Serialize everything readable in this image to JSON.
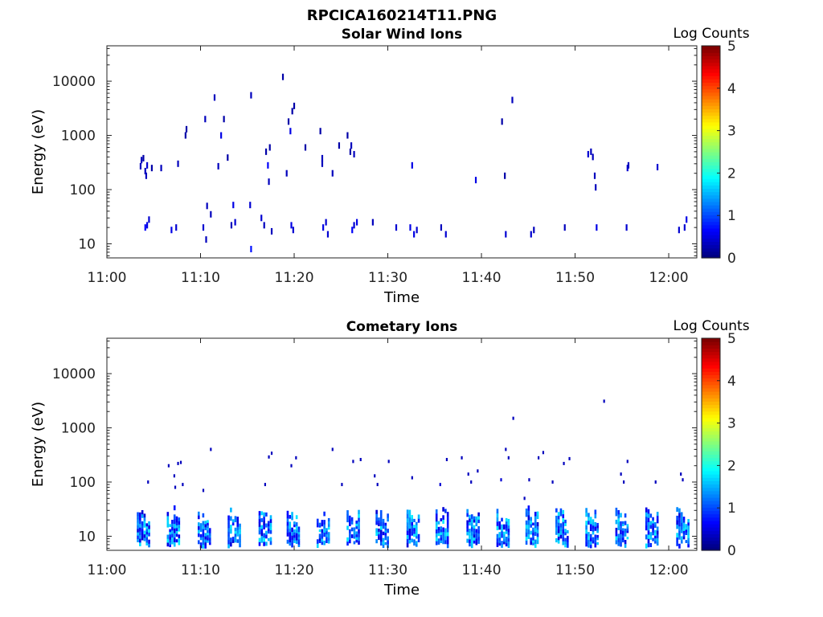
{
  "figure_title": "RPCICA160214T11.PNG",
  "chart_data": [
    {
      "type": "heatmap",
      "title": "Solar Wind Ions",
      "xlabel": "Time",
      "ylabel": "Energy (eV)",
      "yscale": "log",
      "ylim": [
        5.5,
        45000
      ],
      "xlim_minutes_after_11_00": [
        0,
        63
      ],
      "xticks": [
        "11:00",
        "11:10",
        "11:20",
        "11:30",
        "11:40",
        "11:50",
        "12:00"
      ],
      "yticks": [
        "10",
        "100",
        "1000",
        "10000"
      ],
      "colorbar": {
        "label": "Log Counts",
        "range": [
          0,
          5
        ],
        "ticks": [
          "0",
          "1",
          "2",
          "3",
          "4",
          "5"
        ],
        "colormap": "jet"
      },
      "grid": false,
      "cells": [
        [
          3.6,
          270,
          0.3
        ],
        [
          3.7,
          350,
          0.3
        ],
        [
          3.9,
          380,
          0.2
        ],
        [
          4.1,
          220,
          0.3
        ],
        [
          4.2,
          180,
          0.3
        ],
        [
          4.3,
          280,
          0.4
        ],
        [
          4.1,
          20,
          0.6
        ],
        [
          4.3,
          22,
          0.5
        ],
        [
          4.5,
          28,
          0.4
        ],
        [
          4.8,
          250,
          0.2
        ],
        [
          5.8,
          250,
          0.3
        ],
        [
          6.9,
          18,
          0.5
        ],
        [
          7.4,
          20,
          0.4
        ],
        [
          7.6,
          300,
          0.3
        ],
        [
          8.4,
          1000,
          0.2
        ],
        [
          8.5,
          1300,
          0.2
        ],
        [
          10.3,
          20,
          0.4
        ],
        [
          10.6,
          12,
          0.3
        ],
        [
          10.5,
          2000,
          0.3
        ],
        [
          10.7,
          50,
          0.3
        ],
        [
          11.1,
          35,
          0.3
        ],
        [
          11.5,
          5000,
          0.3
        ],
        [
          11.9,
          270,
          0.3
        ],
        [
          12.2,
          1000,
          0.5
        ],
        [
          12.5,
          2000,
          0.2
        ],
        [
          12.9,
          390,
          0.2
        ],
        [
          13.3,
          22,
          0.3
        ],
        [
          13.5,
          52,
          0.5
        ],
        [
          13.7,
          25,
          0.4
        ],
        [
          15.4,
          5500,
          0.3
        ],
        [
          15.3,
          52,
          0.4
        ],
        [
          15.4,
          8,
          0.7
        ],
        [
          16.5,
          30,
          0.4
        ],
        [
          16.8,
          22,
          0.3
        ],
        [
          17,
          500,
          0.2
        ],
        [
          17.2,
          280,
          0.6
        ],
        [
          17.3,
          140,
          0.3
        ],
        [
          17.4,
          600,
          0.2
        ],
        [
          17.6,
          17,
          0.3
        ],
        [
          18.8,
          12000,
          0.2
        ],
        [
          19.2,
          200,
          0.3
        ],
        [
          19.4,
          1800,
          0.2
        ],
        [
          19.6,
          1200,
          0.5
        ],
        [
          19.8,
          2800,
          0.2
        ],
        [
          20,
          3500,
          0.2
        ],
        [
          19.7,
          22,
          0.5
        ],
        [
          19.9,
          18,
          0.4
        ],
        [
          21.2,
          600,
          0.2
        ],
        [
          22.8,
          1200,
          0.2
        ],
        [
          23,
          380,
          0.3
        ],
        [
          23,
          300,
          0.3
        ],
        [
          23.1,
          20,
          0.5
        ],
        [
          23.4,
          25,
          0.4
        ],
        [
          23.6,
          15,
          0.4
        ],
        [
          24.1,
          200,
          0.3
        ],
        [
          24.8,
          650,
          0.2
        ],
        [
          25.7,
          1000,
          0.2
        ],
        [
          26,
          500,
          0.2
        ],
        [
          26.1,
          650,
          0.3
        ],
        [
          26.4,
          450,
          0.3
        ],
        [
          26.2,
          18,
          0.6
        ],
        [
          26.4,
          22,
          0.4
        ],
        [
          26.7,
          25,
          0.5
        ],
        [
          28.4,
          25,
          0.3
        ],
        [
          30.9,
          20,
          0.4
        ],
        [
          32.4,
          20,
          0.5
        ],
        [
          32.6,
          280,
          0.5
        ],
        [
          32.8,
          15,
          0.5
        ],
        [
          33.1,
          18,
          0.4
        ],
        [
          35.7,
          20,
          0.3
        ],
        [
          36.2,
          15,
          0.4
        ],
        [
          39.4,
          150,
          0.5
        ],
        [
          42.2,
          1800,
          0.2
        ],
        [
          42.5,
          180,
          0.2
        ],
        [
          42.6,
          15,
          0.4
        ],
        [
          43.3,
          4500,
          0.3
        ],
        [
          45.3,
          15,
          0.4
        ],
        [
          45.6,
          18,
          0.3
        ],
        [
          48.9,
          20,
          0.3
        ],
        [
          51.4,
          450,
          0.4
        ],
        [
          51.7,
          500,
          0.3
        ],
        [
          51.9,
          400,
          0.3
        ],
        [
          52.1,
          180,
          0.3
        ],
        [
          52.2,
          110,
          0.3
        ],
        [
          52.3,
          20,
          0.5
        ],
        [
          55.6,
          250,
          0.4
        ],
        [
          55.7,
          280,
          0.3
        ],
        [
          55.5,
          20,
          0.4
        ],
        [
          58.8,
          260,
          0.4
        ],
        [
          61.1,
          18,
          0.4
        ],
        [
          61.7,
          20,
          0.4
        ],
        [
          61.9,
          28,
          0.5
        ]
      ]
    },
    {
      "type": "heatmap",
      "title": "Cometary Ions",
      "xlabel": "Time",
      "ylabel": "Energy (eV)",
      "yscale": "log",
      "ylim": [
        5.5,
        45000
      ],
      "xlim_minutes_after_11_00": [
        0,
        63
      ],
      "xticks": [
        "11:00",
        "11:10",
        "11:20",
        "11:30",
        "11:40",
        "11:50",
        "12:00"
      ],
      "yticks": [
        "10",
        "100",
        "1000",
        "10000"
      ],
      "colorbar": {
        "label": "Log Counts",
        "range": [
          0,
          5
        ],
        "ticks": [
          "0",
          "1",
          "2",
          "3",
          "4",
          "5"
        ],
        "colormap": "jet"
      },
      "grid": false,
      "bursts_minutes": [
        3.9,
        7.1,
        10.4,
        13.6,
        16.9,
        19.9,
        23.1,
        26.3,
        29.4,
        32.7,
        35.8,
        39.1,
        42.3,
        45.4,
        48.6,
        51.8,
        55.0,
        58.2,
        61.5
      ],
      "burst_energy_range_ev": [
        6,
        38
      ],
      "burst_peak_log_counts": 1.8,
      "sparse_cells": [
        [
          4.4,
          100,
          0.3
        ],
        [
          6.6,
          200,
          0.3
        ],
        [
          7.2,
          130,
          0.3
        ],
        [
          7.3,
          80,
          0.3
        ],
        [
          7.6,
          220,
          0.3
        ],
        [
          7.9,
          230,
          0.3
        ],
        [
          8.1,
          90,
          0.3
        ],
        [
          10.3,
          70,
          0.3
        ],
        [
          11.1,
          400,
          0.3
        ],
        [
          16.9,
          90,
          0.3
        ],
        [
          17.3,
          290,
          0.3
        ],
        [
          17.6,
          340,
          0.3
        ],
        [
          19.7,
          200,
          0.3
        ],
        [
          20.2,
          280,
          0.3
        ],
        [
          24.1,
          400,
          0.3
        ],
        [
          25.1,
          90,
          0.3
        ],
        [
          26.3,
          240,
          0.3
        ],
        [
          27.1,
          260,
          0.3
        ],
        [
          28.6,
          130,
          0.3
        ],
        [
          28.9,
          90,
          0.3
        ],
        [
          30.1,
          240,
          0.3
        ],
        [
          32.6,
          120,
          0.3
        ],
        [
          35.6,
          90,
          0.4
        ],
        [
          36.3,
          260,
          0.3
        ],
        [
          37.9,
          280,
          0.3
        ],
        [
          38.6,
          140,
          0.3
        ],
        [
          38.9,
          100,
          0.3
        ],
        [
          39.6,
          160,
          0.3
        ],
        [
          42.1,
          110,
          0.4
        ],
        [
          42.6,
          400,
          0.3
        ],
        [
          42.9,
          280,
          0.3
        ],
        [
          43.4,
          1500,
          0.3
        ],
        [
          44.6,
          50,
          0.3
        ],
        [
          45.1,
          110,
          0.3
        ],
        [
          46.1,
          280,
          0.3
        ],
        [
          46.6,
          350,
          0.3
        ],
        [
          47.6,
          100,
          0.3
        ],
        [
          48.8,
          220,
          0.3
        ],
        [
          49.4,
          270,
          0.3
        ],
        [
          53.1,
          3100,
          0.3
        ],
        [
          54.9,
          140,
          0.3
        ],
        [
          55.2,
          100,
          0.3
        ],
        [
          55.6,
          240,
          0.3
        ],
        [
          58.6,
          100,
          0.3
        ],
        [
          61.3,
          140,
          0.3
        ],
        [
          61.5,
          110,
          0.3
        ]
      ]
    }
  ]
}
